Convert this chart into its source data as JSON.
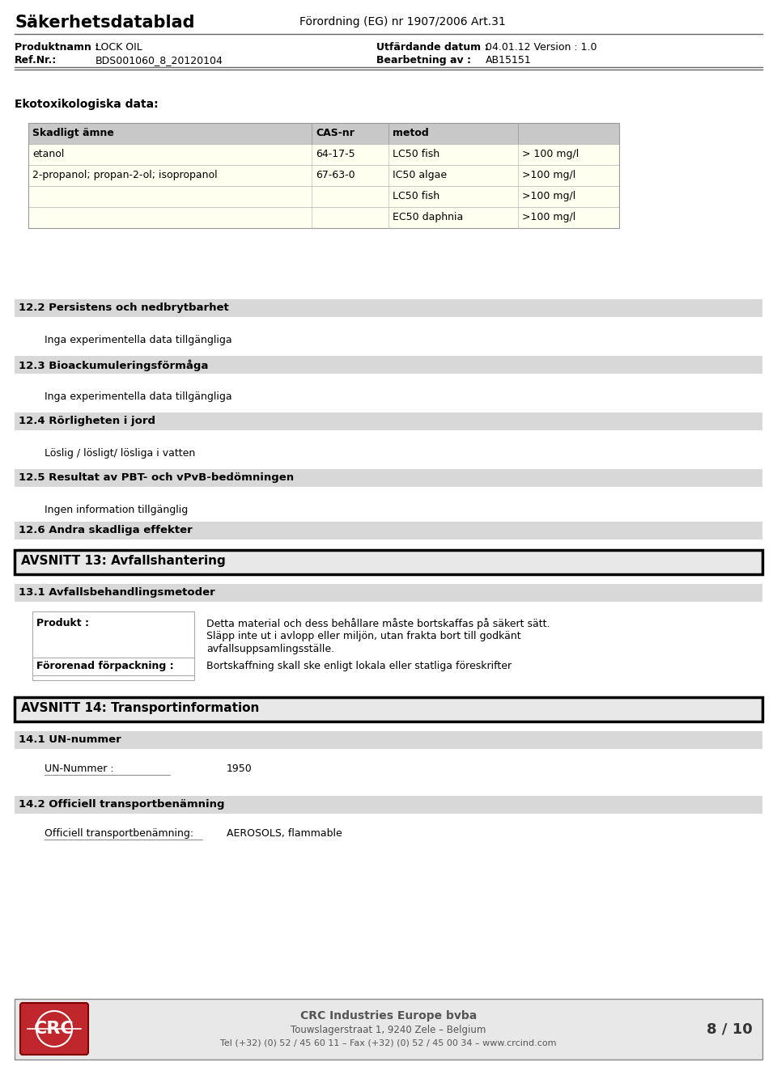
{
  "page_bg": "#ffffff",
  "header_title_left": "Säkerhetsdatablad",
  "header_title_right": "Förordning (EG) nr 1907/2006 Art.31",
  "product_label1": "Produktnamn :",
  "product_value1": "LOCK OIL",
  "product_label2": "Ref.Nr.:",
  "product_value2": "BDS001060_8_20120104",
  "date_label": "Utfärdande datum :",
  "date_value": "04.01.12 Version : 1.0",
  "proc_label": "Bearbetning av :",
  "proc_value": "AB15151",
  "section_title_eco": "Ekotoxikologiska data:",
  "table_header": [
    "Skadligt ämne",
    "CAS-nr",
    "metod",
    ""
  ],
  "table_header_bg": "#c8c8c8",
  "table_row_bg": "#fffff0",
  "table_rows": [
    [
      "etanol",
      "64-17-5",
      "LC50 fish",
      "> 100 mg/l"
    ],
    [
      "2-propanol; propan-2-ol; isopropanol",
      "67-63-0",
      "IC50 algae",
      ">100 mg/l"
    ],
    [
      "",
      "",
      "LC50 fish",
      ">100 mg/l"
    ],
    [
      "",
      "",
      "EC50 daphnia",
      ">100 mg/l"
    ]
  ],
  "section_bg": "#d8d8d8",
  "section_122_title": "12.2 Persistens och nedbrytbarhet",
  "section_122_text": "Inga experimentella data tillgängliga",
  "section_123_title": "12.3 Bioackumuleringsförmåga",
  "section_123_text": "Inga experimentella data tillgängliga",
  "section_124_title": "12.4 Rörligheten i jord",
  "section_124_text": "Löslig / lösligt/ lösliga i vatten",
  "section_125_title": "12.5 Resultat av PBT- och vPvB-bedömningen",
  "section_125_text": "Ingen information tillgänglig",
  "section_126_title": "12.6 Andra skadliga effekter",
  "section_126_text": "",
  "avsnitt13_title": "AVSNITT 13: Avfallshantering",
  "section_131_title": "13.1 Avfallsbehandlingsmetoder",
  "produkt_label": "Produkt :",
  "produkt_text1": "Detta material och dess behållare måste bortskaffas på säkert sätt.",
  "produkt_text2": "Släpp inte ut i avlopp eller miljön, utan frakta bort till godkänt",
  "produkt_text3": "avfallsuppsamlingsställe.",
  "fororenad_label": "Förorenad förpackning :",
  "fororenad_text": "Bortskaffning skall ske enligt lokala eller statliga föreskrifter",
  "avsnitt14_title": "AVSNITT 14: Transportinformation",
  "section_141_title": "14.1 UN-nummer",
  "un_label": "UN-Nummer :",
  "un_value": "1950",
  "section_142_title": "14.2 Officiell transportbenämning",
  "transport_label": "Officiell transportbenämning:",
  "transport_value": "AEROSOLS, flammable",
  "footer_company": "CRC Industries Europe bvba",
  "footer_address": "Touwslagerstraat 1, 9240 Zele – Belgium",
  "footer_tel": "Tel (+32) (0) 52 / 45 60 11 – Fax (+32) (0) 52 / 45 00 34 – www.crcind.com",
  "footer_page": "8 / 10",
  "footer_bg": "#e8e8e8",
  "crc_red": "#c0272d"
}
